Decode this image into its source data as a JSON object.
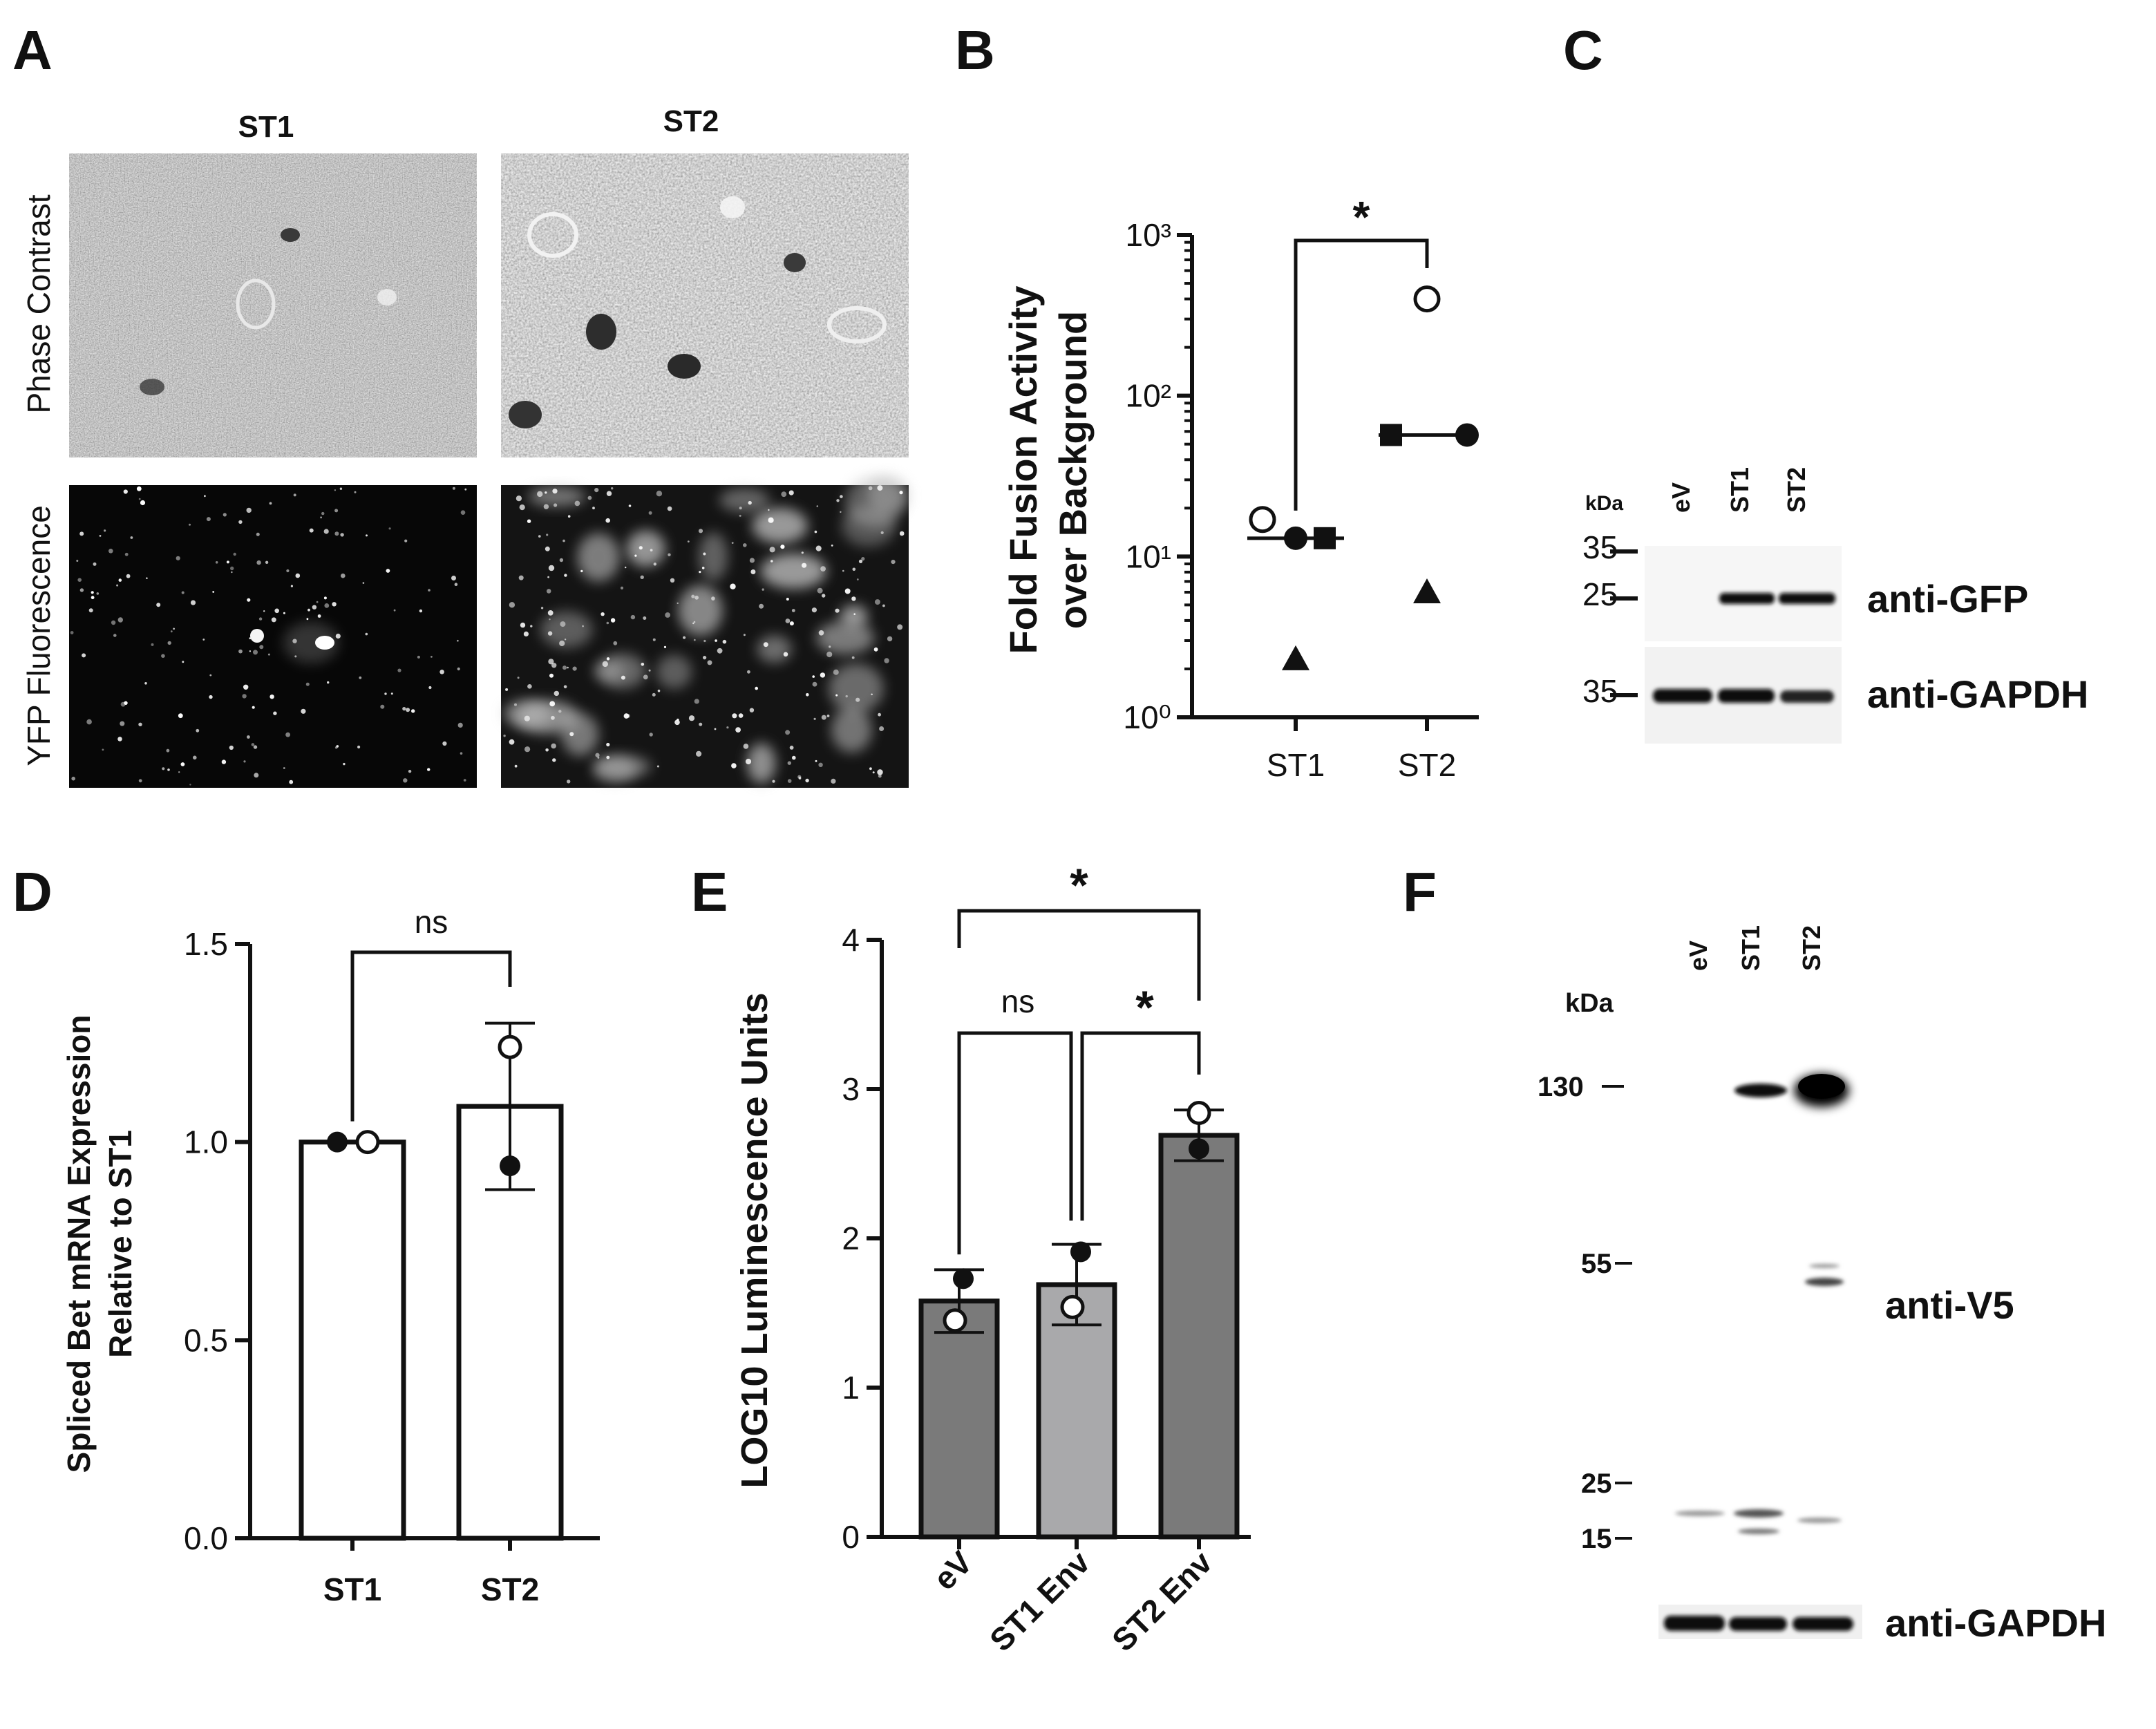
{
  "panel_letters": {
    "a": "A",
    "b": "B",
    "c": "C",
    "d": "D",
    "e": "E",
    "f": "F"
  },
  "panel_a": {
    "col_labels": [
      "ST1",
      "ST2"
    ],
    "row_labels": [
      "Phase Contrast",
      "YFP Fluorescence"
    ]
  },
  "panel_b": {
    "ylabel_line1": "Fold Fusion Activity",
    "ylabel_line2": "over Background",
    "sig_label": "*"
  },
  "panel_c": {
    "kda": "kDa",
    "lanes": [
      "eV",
      "ST1",
      "ST2"
    ],
    "markers": [
      "35",
      "25",
      "35"
    ],
    "antibodies": [
      "anti-GFP",
      "anti-GAPDH"
    ]
  },
  "panel_d": {
    "ylabel_line1": "Spliced Bet mRNA Expression",
    "ylabel_line2": "Relative to ST1",
    "sig_label": "ns"
  },
  "panel_e": {
    "ylabel": "LOG10 Luminescence Units",
    "sig_labels": [
      "*",
      "ns",
      "*"
    ]
  },
  "panel_f": {
    "kda": "kDa",
    "lanes": [
      "eV",
      "ST1",
      "ST2"
    ],
    "markers": [
      "130",
      "55",
      "25",
      "15"
    ],
    "antibodies": [
      "anti-V5",
      "anti-GAPDH"
    ]
  },
  "chart_data": [
    {
      "panel": "B",
      "type": "scatter",
      "title": "",
      "xlabel": "",
      "ylabel": "Fold Fusion Activity over Background",
      "categories": [
        "ST1",
        "ST2"
      ],
      "yscale": "log",
      "ylim": [
        1,
        1000
      ],
      "ytick_labels": [
        "10⁰",
        "10¹",
        "10²",
        "10³"
      ],
      "ytick_values": [
        1,
        10,
        100,
        1000
      ],
      "series": [
        {
          "marker": "open-circle",
          "values": [
            17,
            400
          ]
        },
        {
          "marker": "filled-circle",
          "values": [
            13,
            57
          ]
        },
        {
          "marker": "filled-square",
          "values": [
            13,
            57
          ]
        },
        {
          "marker": "filled-triangle",
          "values": [
            2.3,
            6
          ]
        }
      ],
      "medians": [
        13,
        57
      ],
      "comparisons": [
        {
          "from": "ST1",
          "to": "ST2",
          "label": "*"
        }
      ]
    },
    {
      "panel": "D",
      "type": "bar",
      "title": "",
      "xlabel": "",
      "ylabel": "Spliced Bet mRNA Expression Relative to ST1",
      "categories": [
        "ST1",
        "ST2"
      ],
      "values": [
        1.0,
        1.09
      ],
      "error": [
        0,
        0.21
      ],
      "points": {
        "open-circle": [
          1.0,
          1.24
        ],
        "filled-circle": [
          1.0,
          0.94
        ]
      },
      "ylim": [
        0,
        1.5
      ],
      "yticks": [
        0.0,
        0.5,
        1.0,
        1.5
      ],
      "ytick_labels": [
        "0.0",
        "0.5",
        "1.0",
        "1.5"
      ],
      "bar_color": "#ffffff",
      "comparisons": [
        {
          "from": "ST1",
          "to": "ST2",
          "label": "ns"
        }
      ]
    },
    {
      "panel": "E",
      "type": "bar",
      "title": "",
      "xlabel": "",
      "ylabel": "LOG10 Luminescence Units",
      "categories": [
        "eV",
        "ST1 Env",
        "ST2 Env"
      ],
      "values": [
        1.58,
        1.69,
        2.69
      ],
      "error": [
        0.21,
        0.27,
        0.17
      ],
      "points": {
        "open-circle": [
          1.45,
          1.54,
          2.84
        ],
        "filled-circle": [
          1.73,
          1.91,
          2.6
        ]
      },
      "ylim": [
        0,
        4
      ],
      "yticks": [
        0,
        1,
        2,
        3,
        4
      ],
      "ytick_labels": [
        "0",
        "1",
        "2",
        "3",
        "4"
      ],
      "bar_colors": [
        "#7a7a7a",
        "#a9a9ab",
        "#7a7a7a"
      ],
      "comparisons": [
        {
          "from": "eV",
          "to": "ST2 Env",
          "label": "*"
        },
        {
          "from": "eV",
          "to": "ST1 Env",
          "label": "ns"
        },
        {
          "from": "ST1 Env",
          "to": "ST2 Env",
          "label": "*"
        }
      ]
    }
  ]
}
